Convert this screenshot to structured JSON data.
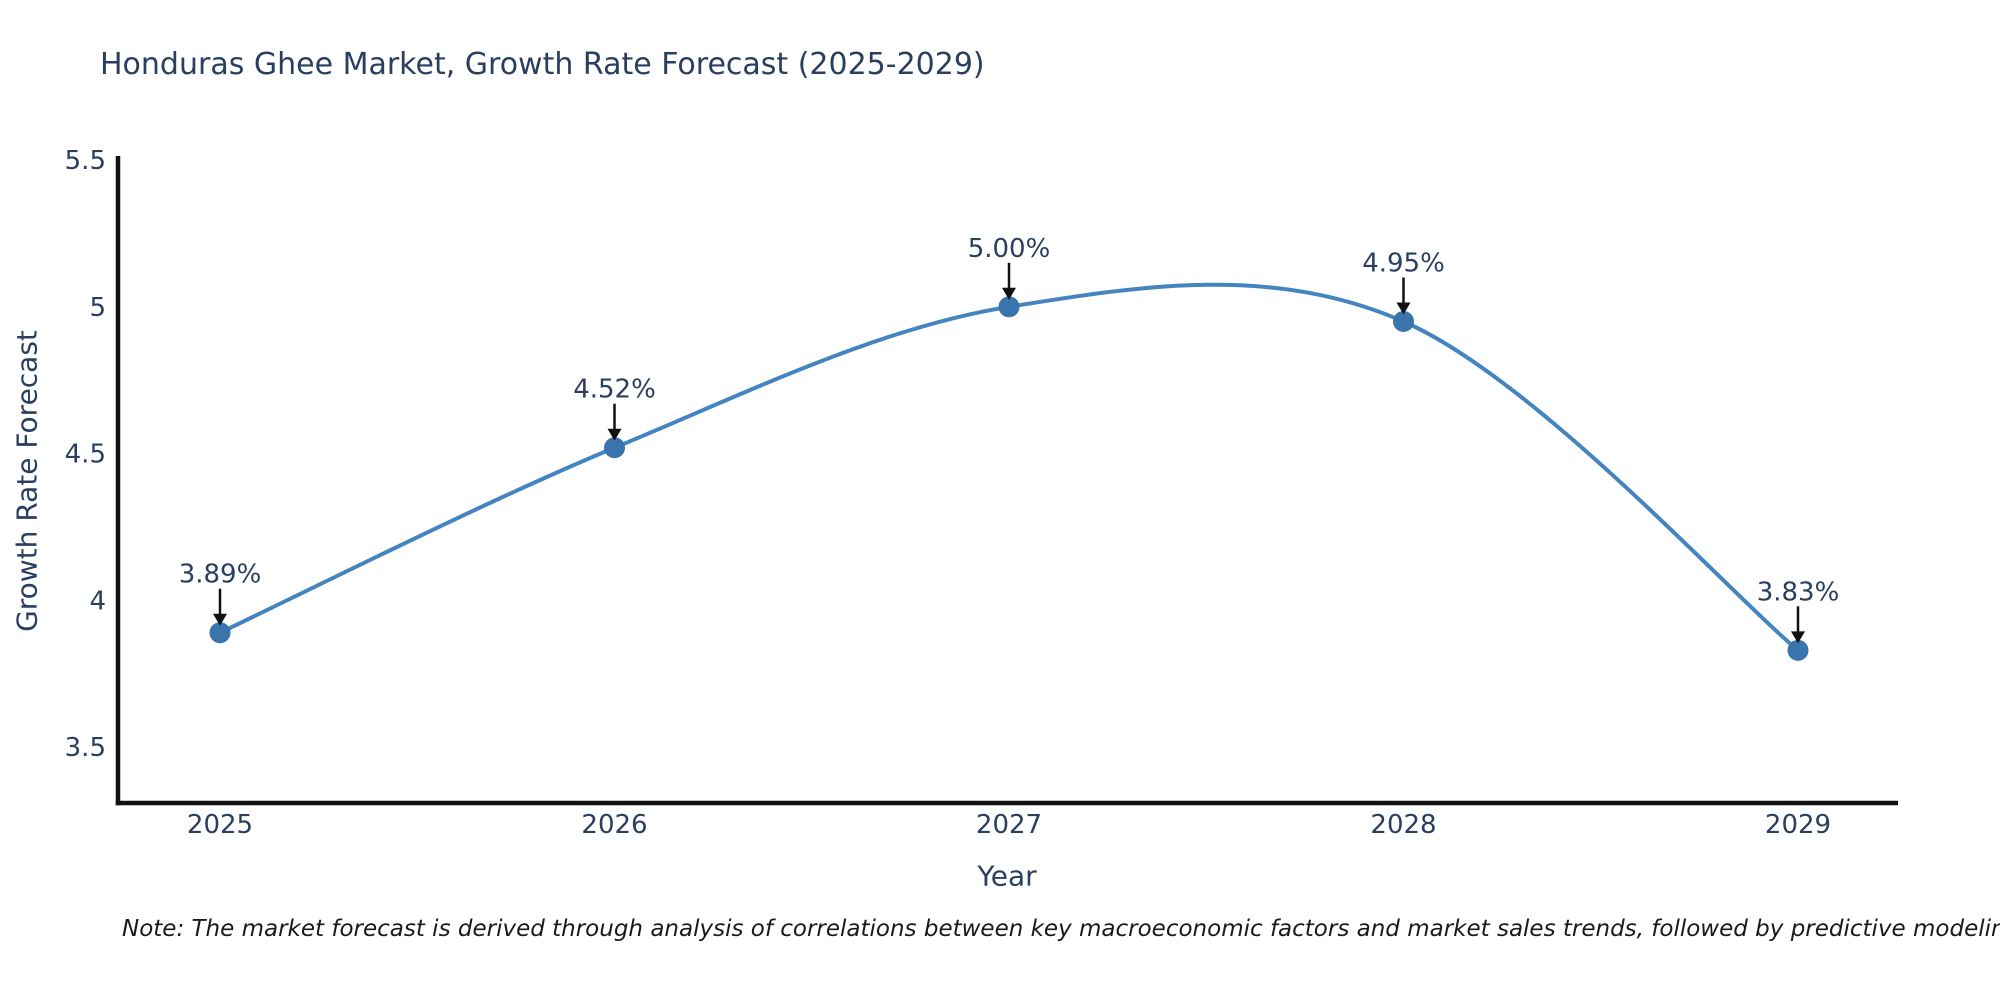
{
  "colors": {
    "background": "#ffffff",
    "text": "#2a3f5f",
    "axis_line": "#111111",
    "series_line": "#4484bf",
    "marker": "#3a74ad",
    "arrow": "#111111",
    "note_text": "#1a1a1a"
  },
  "note": "Note: The market forecast is derived through analysis of correlations between key macroeconomic factors and market sales trends, followed by predictive modeling to project future sales",
  "chart_data": {
    "type": "line",
    "title": "Honduras Ghee Market, Growth Rate Forecast (2025-2029)",
    "xlabel": "Year",
    "ylabel": "Growth Rate Forecast",
    "categories": [
      "2025",
      "2026",
      "2027",
      "2028",
      "2029"
    ],
    "series": [
      {
        "name": "Growth Rate Forecast",
        "values": [
          3.89,
          4.52,
          5.0,
          4.95,
          3.83
        ],
        "point_labels": [
          "3.89%",
          "4.52%",
          "5.00%",
          "4.95%",
          "3.83%"
        ]
      }
    ],
    "yticks": [
      5.5,
      5,
      4.5,
      4,
      3.5
    ],
    "ylim": [
      3.31,
      5.5
    ],
    "line_shape": "spline",
    "markers": true,
    "grid": false,
    "legend": false,
    "annotations": "each point labeled with its value and a black downward arrow"
  }
}
